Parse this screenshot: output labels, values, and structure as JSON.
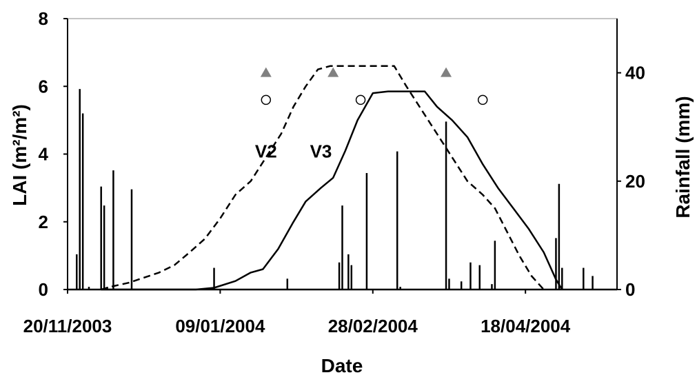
{
  "chart_data": {
    "type": "line",
    "xlabel": "Date",
    "ylabel_left": "LAI (m²/m²)",
    "ylabel_right": "Rainfall (mm)",
    "x_range": [
      "2003-11-20",
      "2004-05-18"
    ],
    "x_ticks": [
      "20/11/2003",
      "09/01/2004",
      "28/02/2004",
      "18/04/2004"
    ],
    "x_tick_dates": [
      "2003-11-20",
      "2004-01-09",
      "2004-02-28",
      "2004-04-18"
    ],
    "ylim_left": [
      0,
      8
    ],
    "yticks_left": [
      0,
      2,
      4,
      6,
      8
    ],
    "ylim_right": [
      0,
      50
    ],
    "yticks_right": [
      0,
      20,
      40
    ],
    "grid": false,
    "legend": "none",
    "annotations": [
      {
        "text": "V2",
        "x": "2004-01-24",
        "y": 3.9
      },
      {
        "text": "V3",
        "x": "2004-02-11",
        "y": 3.9
      }
    ],
    "series": [
      {
        "name": "V2",
        "kind": "line",
        "axis": "left",
        "style": "dashed",
        "color": "#000000",
        "x": [
          "2003-12-01",
          "2003-12-05",
          "2003-12-10",
          "2003-12-15",
          "2003-12-20",
          "2003-12-25",
          "2003-12-30",
          "2004-01-04",
          "2004-01-09",
          "2004-01-14",
          "2004-01-19",
          "2004-01-24",
          "2004-01-29",
          "2004-02-02",
          "2004-02-06",
          "2004-02-10",
          "2004-02-14",
          "2004-02-18",
          "2004-02-26",
          "2004-03-06",
          "2004-03-10",
          "2004-03-15",
          "2004-03-20",
          "2004-03-25",
          "2004-03-30",
          "2004-04-04",
          "2004-04-08",
          "2004-04-12",
          "2004-04-16",
          "2004-04-20",
          "2004-04-24"
        ],
        "values": [
          0,
          0.1,
          0.2,
          0.35,
          0.5,
          0.72,
          1.1,
          1.5,
          2.1,
          2.8,
          3.2,
          3.9,
          4.6,
          5.4,
          6.0,
          6.5,
          6.6,
          6.6,
          6.6,
          6.6,
          6.0,
          5.3,
          4.6,
          3.9,
          3.2,
          2.8,
          2.4,
          1.7,
          1.0,
          0.4,
          0
        ]
      },
      {
        "name": "V3",
        "kind": "line",
        "axis": "left",
        "style": "solid",
        "color": "#000000",
        "x": [
          "2003-12-01",
          "2004-01-01",
          "2004-01-07",
          "2004-01-14",
          "2004-01-19",
          "2004-01-23",
          "2004-01-28",
          "2004-02-02",
          "2004-02-06",
          "2004-02-11",
          "2004-02-15",
          "2004-02-19",
          "2004-02-23",
          "2004-02-28",
          "2004-03-04",
          "2004-03-06",
          "2004-03-16",
          "2004-03-20",
          "2004-03-25",
          "2004-03-30",
          "2004-04-04",
          "2004-04-09",
          "2004-04-14",
          "2004-04-19",
          "2004-04-24",
          "2004-04-28",
          "2004-04-30"
        ],
        "values": [
          0,
          0,
          0.05,
          0.25,
          0.5,
          0.6,
          1.2,
          2.0,
          2.6,
          3.0,
          3.3,
          4.1,
          5.0,
          5.8,
          5.85,
          5.85,
          5.85,
          5.4,
          5.0,
          4.5,
          3.7,
          3.0,
          2.4,
          1.8,
          1.1,
          0.3,
          0
        ]
      },
      {
        "name": "V2 observed",
        "kind": "marker",
        "marker": "triangle",
        "axis": "left",
        "color": "#808080",
        "x": [
          "2004-01-24",
          "2004-02-15",
          "2004-03-23"
        ],
        "values": [
          6.4,
          6.4,
          6.4
        ]
      },
      {
        "name": "V3 observed",
        "kind": "marker",
        "marker": "circle",
        "axis": "left",
        "color": "#000000",
        "x": [
          "2004-01-24",
          "2004-02-24",
          "2004-04-04"
        ],
        "values": [
          5.6,
          5.6,
          5.6
        ]
      },
      {
        "name": "Rainfall",
        "kind": "bar",
        "axis": "right",
        "color": "#000000",
        "x": [
          "2003-11-23",
          "2003-11-24",
          "2003-11-25",
          "2003-11-27",
          "2003-12-01",
          "2003-12-02",
          "2003-12-03",
          "2003-12-05",
          "2003-12-11",
          "2004-01-07",
          "2004-01-31",
          "2004-02-17",
          "2004-02-18",
          "2004-02-20",
          "2004-02-21",
          "2004-02-26",
          "2004-03-07",
          "2004-03-08",
          "2004-03-23",
          "2004-03-24",
          "2004-03-28",
          "2004-03-31",
          "2004-04-03",
          "2004-04-07",
          "2004-04-08",
          "2004-04-28",
          "2004-04-29",
          "2004-04-30",
          "2004-05-07",
          "2004-05-10"
        ],
        "values": [
          6.5,
          37,
          32.5,
          0.5,
          19,
          15.5,
          0.5,
          22,
          18.5,
          4,
          2,
          5,
          15.5,
          6.5,
          4.5,
          21.5,
          25.5,
          0.5,
          31,
          2,
          1.5,
          5,
          4.5,
          1,
          9,
          9.5,
          19.5,
          4,
          4,
          2.5
        ]
      }
    ]
  }
}
